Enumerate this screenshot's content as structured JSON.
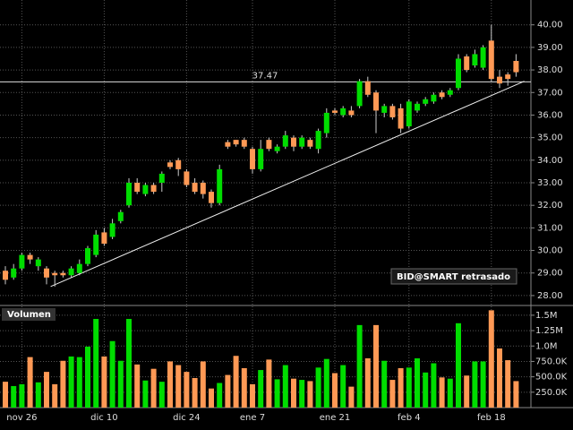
{
  "chart_data": [
    {
      "type": "candlestick",
      "categories": [
        null,
        null,
        "nov 26",
        null,
        null,
        null,
        null,
        null,
        null,
        null,
        null,
        null,
        "dic 10",
        null,
        null,
        null,
        null,
        null,
        null,
        null,
        null,
        null,
        "dic 24",
        null,
        null,
        null,
        null,
        null,
        null,
        null,
        "ene 7",
        null,
        null,
        null,
        null,
        null,
        null,
        null,
        null,
        null,
        "ene 21",
        null,
        null,
        null,
        null,
        null,
        null,
        null,
        null,
        "feb 4",
        null,
        null,
        null,
        null,
        null,
        null,
        null,
        null,
        null,
        "feb 18",
        null,
        null,
        null
      ],
      "open": [
        29.1,
        28.8,
        29.2,
        29.8,
        29.3,
        29.2,
        29.0,
        29.0,
        28.9,
        29.0,
        29.4,
        29.8,
        30.8,
        30.6,
        31.3,
        32.0,
        33.0,
        32.5,
        32.9,
        33.0,
        33.9,
        34.0,
        33.5,
        33.0,
        33.0,
        32.6,
        32.1,
        34.8,
        34.9,
        34.9,
        34.5,
        33.6,
        34.9,
        34.4,
        34.6,
        35.0,
        34.6,
        34.9,
        34.5,
        35.2,
        36.2,
        36.0,
        36.2,
        36.4,
        37.5,
        37.0,
        36.1,
        36.4,
        36.3,
        35.5,
        36.2,
        36.5,
        36.6,
        37.0,
        36.9,
        37.2,
        38.6,
        38.2,
        38.1,
        39.3,
        37.7,
        37.8,
        38.4
      ],
      "high": [
        29.3,
        29.4,
        29.9,
        29.9,
        29.7,
        29.3,
        29.1,
        29.1,
        29.3,
        29.6,
        30.2,
        30.9,
        31.0,
        31.4,
        31.8,
        33.2,
        33.2,
        33.0,
        33.0,
        33.5,
        34.0,
        34.1,
        33.6,
        33.2,
        33.1,
        32.7,
        33.8,
        34.9,
        34.9,
        35.0,
        34.6,
        34.9,
        35.0,
        34.7,
        35.3,
        35.1,
        35.1,
        35.0,
        35.4,
        36.3,
        36.3,
        36.4,
        36.4,
        37.6,
        37.7,
        37.1,
        36.5,
        36.5,
        36.5,
        36.7,
        36.6,
        36.8,
        37.0,
        37.1,
        37.2,
        38.7,
        38.7,
        38.9,
        39.1,
        40.0,
        38.0,
        37.9,
        38.7
      ],
      "low": [
        28.5,
        28.7,
        29.1,
        29.4,
        29.1,
        28.5,
        28.4,
        28.8,
        28.8,
        28.9,
        29.3,
        29.7,
        30.2,
        30.5,
        31.2,
        31.9,
        32.5,
        32.4,
        32.5,
        32.6,
        33.6,
        33.3,
        32.8,
        32.5,
        32.3,
        31.9,
        32.0,
        34.5,
        34.6,
        34.5,
        33.4,
        33.5,
        34.4,
        34.3,
        34.5,
        34.4,
        34.5,
        34.5,
        34.3,
        35.0,
        36.0,
        35.9,
        35.9,
        36.3,
        36.8,
        35.2,
        35.9,
        35.8,
        35.2,
        35.4,
        36.1,
        36.4,
        36.5,
        36.7,
        36.8,
        37.1,
        37.9,
        38.1,
        38.0,
        37.5,
        37.2,
        37.3,
        37.7
      ],
      "close": [
        28.7,
        29.2,
        29.8,
        29.6,
        29.6,
        28.8,
        28.9,
        28.9,
        29.2,
        29.4,
        30.1,
        30.7,
        30.3,
        31.2,
        31.7,
        33.0,
        32.6,
        32.9,
        32.6,
        33.4,
        33.7,
        33.6,
        32.9,
        32.6,
        32.5,
        32.1,
        33.6,
        34.6,
        34.7,
        34.6,
        33.6,
        34.5,
        34.5,
        34.6,
        35.1,
        34.6,
        35.0,
        34.6,
        35.3,
        36.1,
        36.1,
        36.3,
        36.0,
        37.5,
        36.9,
        36.2,
        36.4,
        35.9,
        35.4,
        36.6,
        36.5,
        36.7,
        36.9,
        36.8,
        37.1,
        38.5,
        38.0,
        38.7,
        39.0,
        37.6,
        37.4,
        37.6,
        37.9
      ],
      "up_color": "#00dd00",
      "down_color": "#ff9955",
      "ylim": [
        27.6,
        41.1
      ],
      "yticks": [
        {
          "value": 28,
          "label": "28.00"
        },
        {
          "value": 29,
          "label": "29.00"
        },
        {
          "value": 30,
          "label": "30.00"
        },
        {
          "value": 31,
          "label": "31.00"
        },
        {
          "value": 32,
          "label": "32.00"
        },
        {
          "value": 33,
          "label": "33.00"
        },
        {
          "value": 34,
          "label": "34.00"
        },
        {
          "value": 35,
          "label": "35.00"
        },
        {
          "value": 36,
          "label": "36.00"
        },
        {
          "value": 37,
          "label": "37.00"
        },
        {
          "value": 38,
          "label": "38.00"
        },
        {
          "value": 39,
          "label": "39.00"
        },
        {
          "value": 40,
          "label": "40.00"
        }
      ],
      "grid": true,
      "hline": 37.47,
      "trendline": {
        "x": [
          5.5,
          63
        ],
        "y": [
          28.4,
          37.5
        ]
      },
      "badge": "BID@SMART retrasado"
    },
    {
      "type": "bar",
      "title": "Volumen",
      "values": [
        420000,
        350000,
        380000,
        820000,
        410000,
        580000,
        380000,
        760000,
        830000,
        820000,
        990000,
        1440000,
        830000,
        1080000,
        760000,
        1440000,
        700000,
        440000,
        630000,
        420000,
        750000,
        690000,
        580000,
        480000,
        750000,
        310000,
        400000,
        530000,
        840000,
        640000,
        380000,
        610000,
        780000,
        460000,
        690000,
        470000,
        450000,
        430000,
        650000,
        790000,
        560000,
        690000,
        340000,
        1340000,
        800000,
        1340000,
        760000,
        450000,
        640000,
        650000,
        800000,
        570000,
        720000,
        490000,
        470000,
        1370000,
        520000,
        750000,
        750000,
        1580000,
        960000,
        770000,
        430000
      ],
      "ylim": [
        0,
        1600000
      ],
      "yticks": [
        {
          "value": 250000,
          "label": "250.0K"
        },
        {
          "value": 500000,
          "label": "500.0K"
        },
        {
          "value": 750000,
          "label": "750.0K"
        },
        {
          "value": 1000000,
          "label": "1.0M"
        },
        {
          "value": 1250000,
          "label": "1.25M"
        },
        {
          "value": 1500000,
          "label": "1.5M"
        }
      ],
      "grid": true
    }
  ]
}
